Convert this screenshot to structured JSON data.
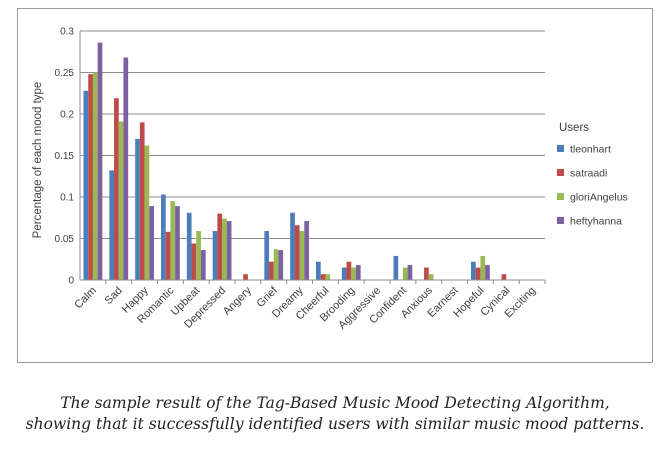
{
  "chart_data": {
    "type": "bar",
    "title": "",
    "xlabel": "",
    "ylabel": "Percentage of each mood type",
    "ylim": [
      0,
      0.3
    ],
    "yticks": [
      "0",
      "0.05",
      "0.1",
      "0.15",
      "0.2",
      "0.25",
      "0.3"
    ],
    "grid": true,
    "legend_title": "Users",
    "legend_position": "right",
    "categories": [
      "Calm",
      "Sad",
      "Happy",
      "Romantic",
      "Upbeat",
      "Depressed",
      "Angery",
      "Grief",
      "Dreamy",
      "Cheerful",
      "Brooding",
      "Aggressive",
      "Confident",
      "Anxious",
      "Earnest",
      "Hopeful",
      "Cynical",
      "Exciting"
    ],
    "series": [
      {
        "name": "tleonhart",
        "color": "#4a7ebb",
        "values": [
          0.228,
          0.132,
          0.17,
          0.103,
          0.081,
          0.059,
          0,
          0.059,
          0.081,
          0.022,
          0.015,
          0,
          0.029,
          0,
          0,
          0.022,
          0,
          0
        ]
      },
      {
        "name": "satraadi",
        "color": "#be4b48",
        "values": [
          0.248,
          0.219,
          0.19,
          0.058,
          0.044,
          0.08,
          0.007,
          0.022,
          0.066,
          0.007,
          0.022,
          0,
          0,
          0.015,
          0,
          0.015,
          0.007,
          0
        ]
      },
      {
        "name": "gloriAngelus",
        "color": "#98b954",
        "values": [
          0.25,
          0.191,
          0.162,
          0.095,
          0.059,
          0.074,
          0,
          0.037,
          0.059,
          0.007,
          0.015,
          0,
          0.015,
          0.007,
          0,
          0.029,
          0,
          0
        ]
      },
      {
        "name": "heftyhanna",
        "color": "#7d60a0",
        "values": [
          0.286,
          0.268,
          0.089,
          0.089,
          0.036,
          0.071,
          0,
          0.036,
          0.071,
          0,
          0.018,
          0,
          0.018,
          0,
          0,
          0.018,
          0,
          0
        ]
      }
    ]
  },
  "caption": {
    "line1": "The sample result of the Tag-Based Music Mood Detecting Algorithm,",
    "line2": "showing that it successfully identified users with similar music mood patterns."
  }
}
